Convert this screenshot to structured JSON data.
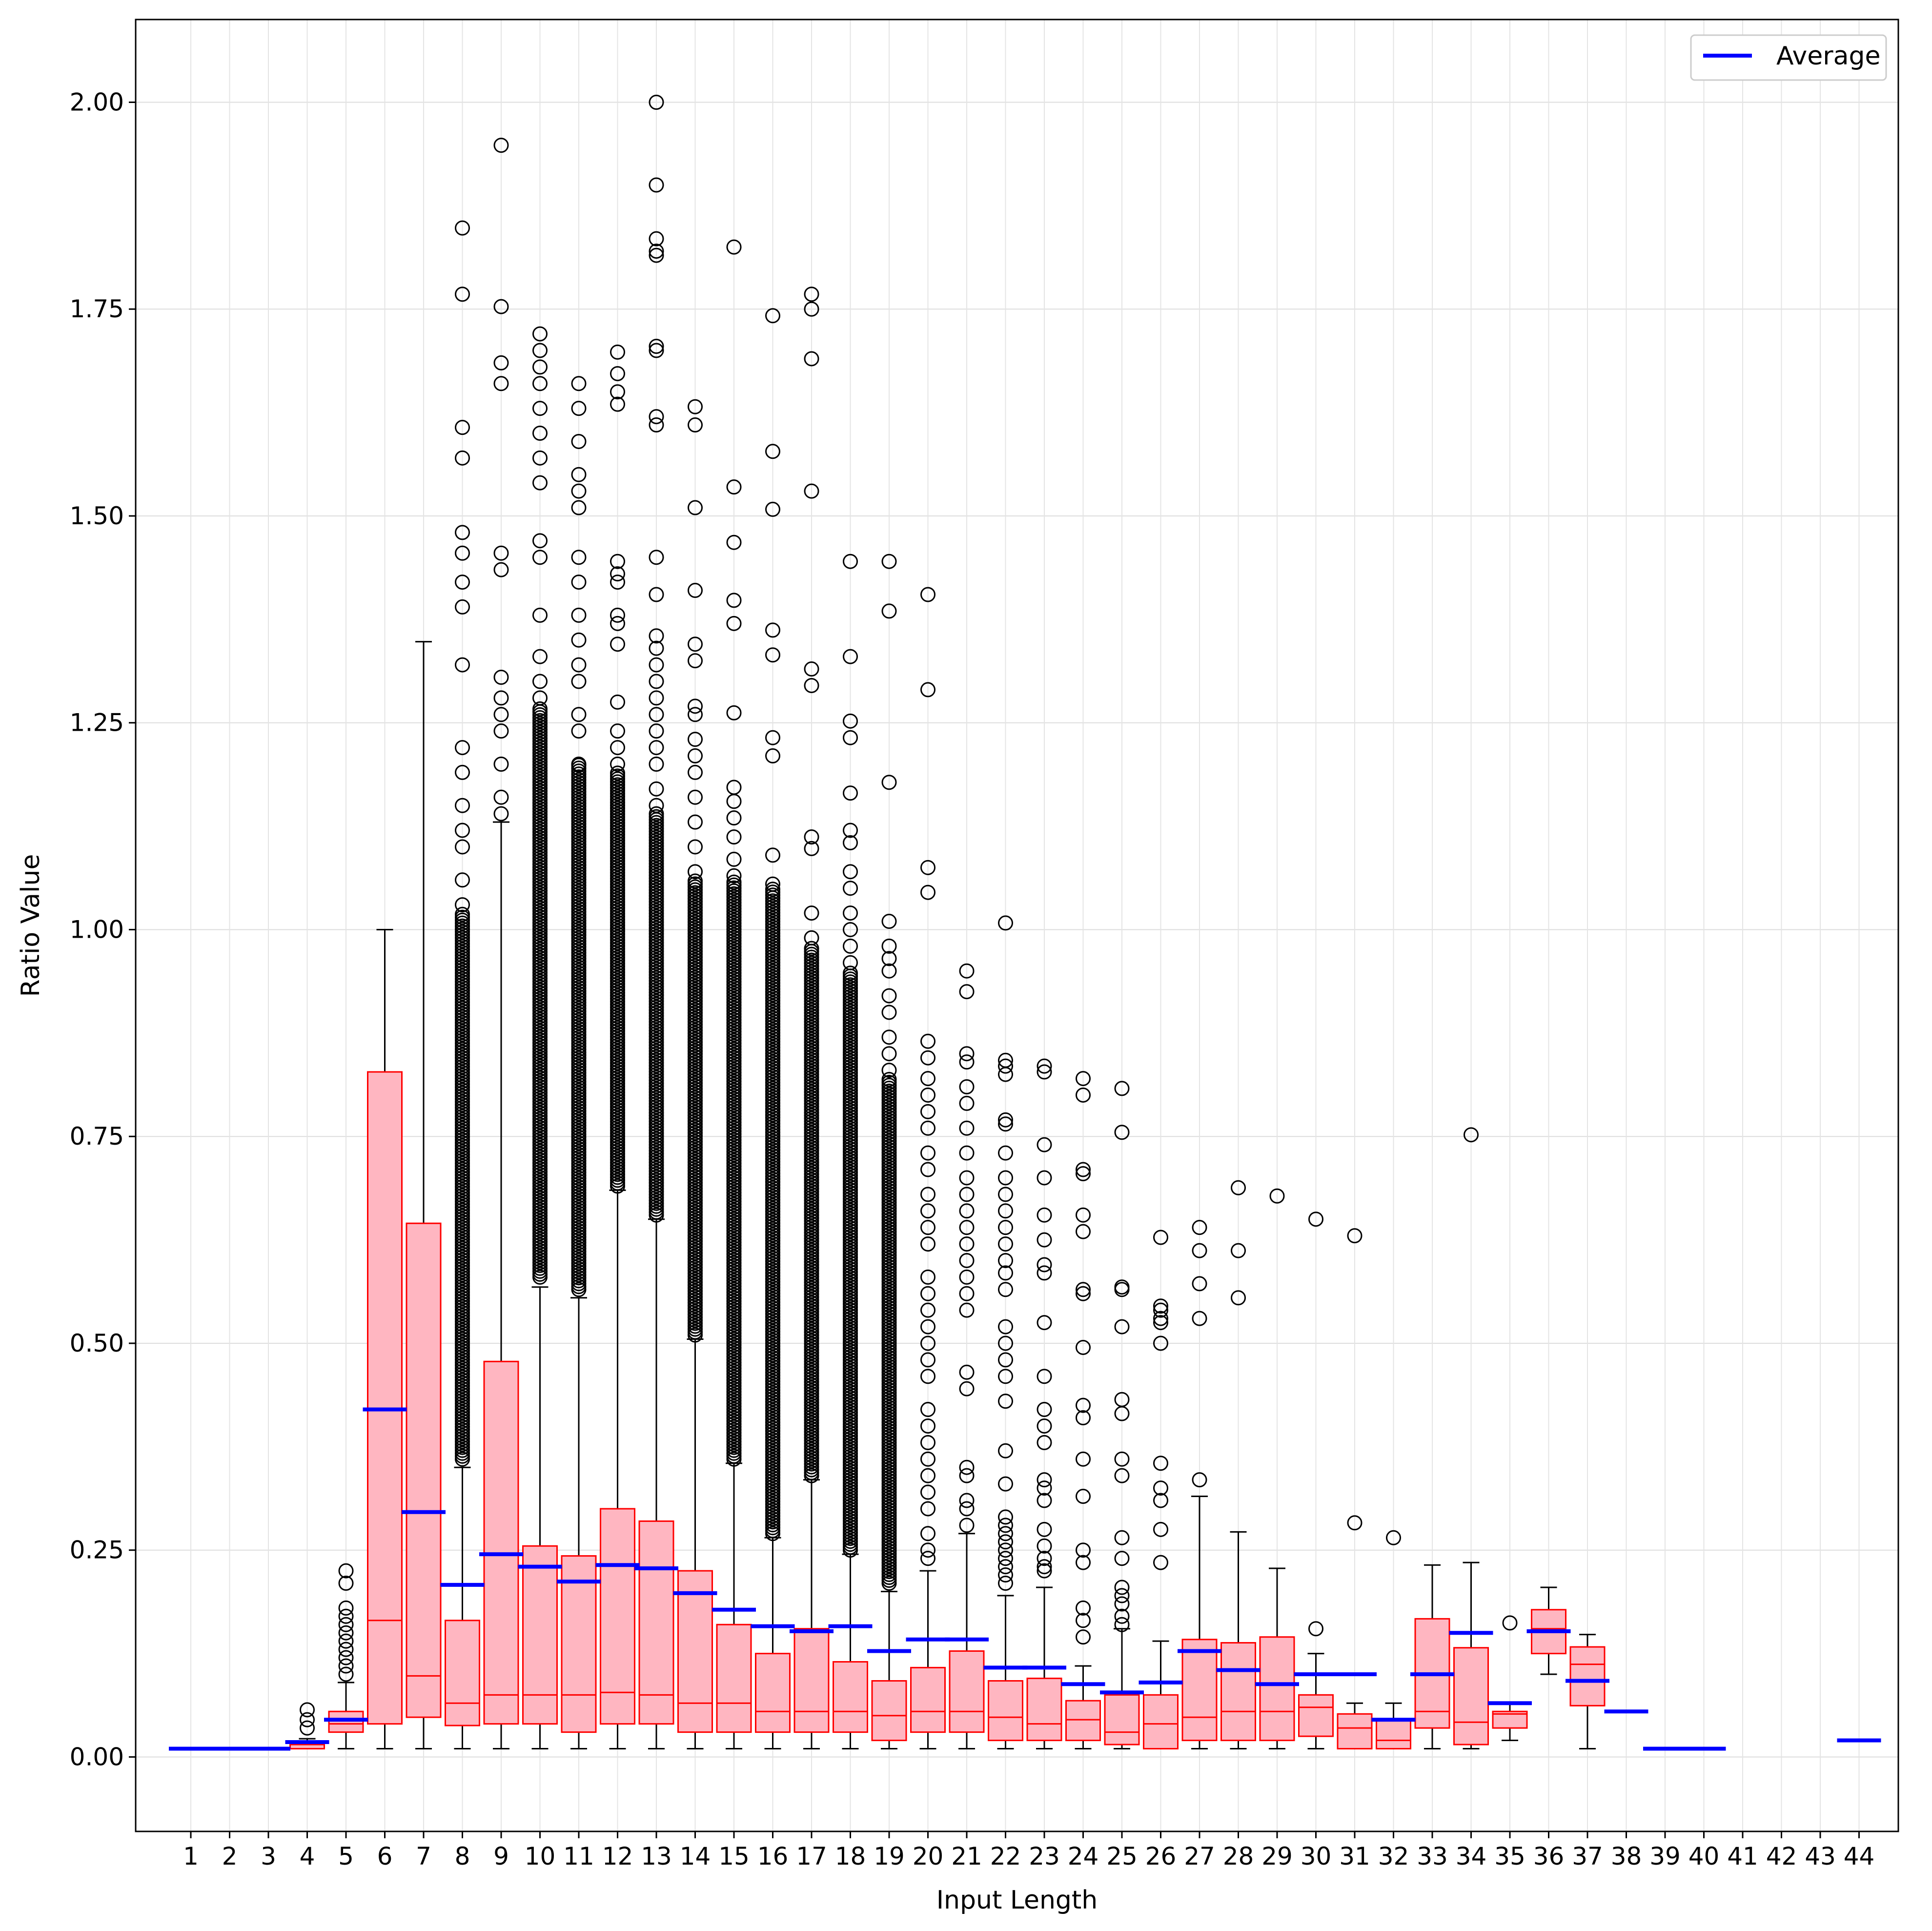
{
  "chart_data": {
    "type": "box",
    "xlabel": "Input Length",
    "ylabel": "Ratio Value",
    "ylim": [
      -0.09,
      2.1
    ],
    "yticks": [
      "0.00",
      "0.25",
      "0.50",
      "0.75",
      "1.00",
      "1.25",
      "1.50",
      "1.75",
      "2.00"
    ],
    "grid": true,
    "legend": {
      "position": "top-right",
      "entries": [
        "Average"
      ]
    },
    "colors": {
      "box_fill": "#ffb6c1",
      "box_edge": "#ff0000",
      "average": "#0000ff",
      "whisker": "#000000"
    },
    "categories": [
      "1",
      "2",
      "3",
      "4",
      "5",
      "6",
      "7",
      "8",
      "9",
      "10",
      "11",
      "12",
      "13",
      "14",
      "15",
      "16",
      "17",
      "18",
      "19",
      "20",
      "21",
      "22",
      "23",
      "24",
      "25",
      "26",
      "27",
      "28",
      "29",
      "30",
      "31",
      "32",
      "33",
      "34",
      "35",
      "36",
      "37",
      "38",
      "39",
      "40",
      "41",
      "42",
      "43",
      "44"
    ],
    "boxes": [
      {
        "x": "1",
        "q1": 0.01,
        "median": 0.01,
        "q3": 0.01,
        "whislo": 0.01,
        "whishi": 0.01,
        "mean": 0.01,
        "fliers": []
      },
      {
        "x": "2",
        "q1": 0.01,
        "median": 0.01,
        "q3": 0.01,
        "whislo": 0.01,
        "whishi": 0.01,
        "mean": 0.01,
        "fliers": []
      },
      {
        "x": "3",
        "q1": 0.01,
        "median": 0.01,
        "q3": 0.01,
        "whislo": 0.01,
        "whishi": 0.01,
        "mean": 0.01,
        "fliers": []
      },
      {
        "x": "4",
        "q1": 0.01,
        "median": 0.01,
        "q3": 0.015,
        "whislo": 0.01,
        "whishi": 0.022,
        "mean": 0.018,
        "fliers": [
          0.035,
          0.045,
          0.057
        ]
      },
      {
        "x": "5",
        "q1": 0.03,
        "median": 0.04,
        "q3": 0.055,
        "whislo": 0.01,
        "whishi": 0.09,
        "mean": 0.045,
        "fliers": [
          0.1,
          0.11,
          0.12,
          0.13,
          0.14,
          0.15,
          0.16,
          0.17,
          0.18,
          0.21,
          0.225
        ]
      },
      {
        "x": "6",
        "q1": 0.04,
        "median": 0.165,
        "q3": 0.828,
        "whislo": 0.01,
        "whishi": 1.0,
        "mean": 0.42,
        "fliers": []
      },
      {
        "x": "7",
        "q1": 0.048,
        "median": 0.098,
        "q3": 0.645,
        "whislo": 0.01,
        "whishi": 1.348,
        "mean": 0.296,
        "fliers": []
      },
      {
        "x": "8",
        "q1": 0.038,
        "median": 0.065,
        "q3": 0.165,
        "whislo": 0.01,
        "whishi": 0.35,
        "mean": 0.208,
        "fliers": [
          1.848,
          1.768,
          1.607,
          1.57,
          1.48,
          1.455,
          1.42,
          1.39,
          1.32,
          1.22,
          1.19,
          1.15,
          1.12,
          1.1,
          1.06,
          1.03
        ],
        "dense_fliers": [
          0.36,
          1.02
        ]
      },
      {
        "x": "9",
        "q1": 0.04,
        "median": 0.075,
        "q3": 0.478,
        "whislo": 0.01,
        "whishi": 1.13,
        "mean": 0.245,
        "fliers": [
          1.948,
          1.753,
          1.685,
          1.66,
          1.455,
          1.435,
          1.305,
          1.28,
          1.26,
          1.24,
          1.2,
          1.16,
          1.14
        ]
      },
      {
        "x": "10",
        "q1": 0.04,
        "median": 0.075,
        "q3": 0.255,
        "whislo": 0.01,
        "whishi": 0.568,
        "mean": 0.23,
        "fliers": [
          1.72,
          1.7,
          1.68,
          1.66,
          1.63,
          1.6,
          1.57,
          1.54,
          1.47,
          1.45,
          1.38,
          1.33,
          1.3,
          1.28
        ],
        "dense_fliers": [
          0.58,
          1.27
        ]
      },
      {
        "x": "11",
        "q1": 0.03,
        "median": 0.075,
        "q3": 0.243,
        "whislo": 0.01,
        "whishi": 0.555,
        "mean": 0.212,
        "fliers": [
          1.66,
          1.63,
          1.59,
          1.55,
          1.53,
          1.51,
          1.45,
          1.42,
          1.38,
          1.35,
          1.32,
          1.3,
          1.26,
          1.24,
          1.2
        ],
        "dense_fliers": [
          0.565,
          1.2
        ]
      },
      {
        "x": "12",
        "q1": 0.04,
        "median": 0.078,
        "q3": 0.3,
        "whislo": 0.01,
        "whishi": 0.685,
        "mean": 0.232,
        "fliers": [
          1.698,
          1.672,
          1.65,
          1.635,
          1.445,
          1.43,
          1.42,
          1.38,
          1.37,
          1.345,
          1.275,
          1.24,
          1.22,
          1.2
        ],
        "dense_fliers": [
          0.69,
          1.19
        ]
      },
      {
        "x": "13",
        "q1": 0.04,
        "median": 0.075,
        "q3": 0.285,
        "whislo": 0.01,
        "whishi": 0.65,
        "mean": 0.228,
        "fliers": [
          2.0,
          1.9,
          1.835,
          1.82,
          1.815,
          1.705,
          1.7,
          1.62,
          1.61,
          1.45,
          1.405,
          1.355,
          1.34,
          1.32,
          1.3,
          1.28,
          1.26,
          1.24,
          1.22,
          1.2,
          1.17,
          1.15
        ],
        "dense_fliers": [
          0.655,
          1.14
        ]
      },
      {
        "x": "14",
        "q1": 0.03,
        "median": 0.065,
        "q3": 0.225,
        "whislo": 0.01,
        "whishi": 0.505,
        "mean": 0.198,
        "fliers": [
          1.632,
          1.61,
          1.51,
          1.41,
          1.345,
          1.325,
          1.27,
          1.26,
          1.23,
          1.21,
          1.19,
          1.16,
          1.13,
          1.1,
          1.07
        ],
        "dense_fliers": [
          0.51,
          1.06
        ]
      },
      {
        "x": "15",
        "q1": 0.03,
        "median": 0.065,
        "q3": 0.16,
        "whislo": 0.01,
        "whishi": 0.355,
        "mean": 0.178,
        "fliers": [
          1.825,
          1.535,
          1.468,
          1.398,
          1.37,
          1.262,
          1.172,
          1.155,
          1.135,
          1.112,
          1.085,
          1.065
        ],
        "dense_fliers": [
          0.36,
          1.06
        ]
      },
      {
        "x": "16",
        "q1": 0.03,
        "median": 0.055,
        "q3": 0.125,
        "whislo": 0.01,
        "whishi": 0.265,
        "mean": 0.158,
        "fliers": [
          1.742,
          1.578,
          1.508,
          1.362,
          1.332,
          1.232,
          1.21,
          1.09,
          1.055
        ],
        "dense_fliers": [
          0.27,
          1.05
        ]
      },
      {
        "x": "17",
        "q1": 0.03,
        "median": 0.055,
        "q3": 0.155,
        "whislo": 0.01,
        "whishi": 0.335,
        "mean": 0.152,
        "fliers": [
          1.768,
          1.75,
          1.69,
          1.53,
          1.315,
          1.295,
          1.112,
          1.098,
          1.02,
          0.99
        ],
        "dense_fliers": [
          0.34,
          0.98
        ]
      },
      {
        "x": "18",
        "q1": 0.03,
        "median": 0.055,
        "q3": 0.115,
        "whislo": 0.01,
        "whishi": 0.245,
        "mean": 0.158,
        "fliers": [
          1.445,
          1.33,
          1.252,
          1.232,
          1.165,
          1.12,
          1.105,
          1.07,
          1.05,
          1.02,
          1.0,
          0.98,
          0.96
        ],
        "dense_fliers": [
          0.25,
          0.95
        ]
      },
      {
        "x": "19",
        "q1": 0.02,
        "median": 0.05,
        "q3": 0.092,
        "whislo": 0.01,
        "whishi": 0.2,
        "mean": 0.128,
        "fliers": [
          1.445,
          1.385,
          1.178,
          1.01,
          0.98,
          0.965,
          0.95,
          0.92,
          0.9,
          0.87,
          0.85,
          0.83
        ],
        "dense_fliers": [
          0.21,
          0.82
        ]
      },
      {
        "x": "20",
        "q1": 0.03,
        "median": 0.055,
        "q3": 0.108,
        "whislo": 0.01,
        "whishi": 0.225,
        "mean": 0.142,
        "fliers": [
          1.405,
          1.29,
          1.075,
          1.045,
          0.865,
          0.845,
          0.82,
          0.8,
          0.78,
          0.76,
          0.73,
          0.71,
          0.68,
          0.66,
          0.64,
          0.62,
          0.58,
          0.56,
          0.54,
          0.52,
          0.5,
          0.48,
          0.46,
          0.42,
          0.4,
          0.38,
          0.36,
          0.34,
          0.32,
          0.3,
          0.27,
          0.25,
          0.24
        ]
      },
      {
        "x": "21",
        "q1": 0.03,
        "median": 0.055,
        "q3": 0.128,
        "whislo": 0.01,
        "whishi": 0.27,
        "mean": 0.142,
        "fliers": [
          0.95,
          0.925,
          0.85,
          0.84,
          0.81,
          0.79,
          0.76,
          0.73,
          0.7,
          0.68,
          0.66,
          0.64,
          0.62,
          0.6,
          0.58,
          0.56,
          0.54,
          0.465,
          0.445,
          0.35,
          0.34,
          0.31,
          0.3,
          0.28
        ]
      },
      {
        "x": "22",
        "q1": 0.02,
        "median": 0.048,
        "q3": 0.092,
        "whislo": 0.01,
        "whishi": 0.195,
        "mean": 0.108,
        "fliers": [
          1.008,
          0.842,
          0.835,
          0.825,
          0.77,
          0.765,
          0.73,
          0.7,
          0.68,
          0.66,
          0.64,
          0.62,
          0.6,
          0.585,
          0.565,
          0.52,
          0.5,
          0.48,
          0.46,
          0.43,
          0.37,
          0.33,
          0.29,
          0.28,
          0.27,
          0.26,
          0.25,
          0.24,
          0.23,
          0.22,
          0.21
        ]
      },
      {
        "x": "23",
        "q1": 0.02,
        "median": 0.04,
        "q3": 0.095,
        "whislo": 0.01,
        "whishi": 0.205,
        "mean": 0.108,
        "fliers": [
          0.835,
          0.828,
          0.74,
          0.7,
          0.655,
          0.625,
          0.595,
          0.585,
          0.525,
          0.46,
          0.42,
          0.4,
          0.38,
          0.335,
          0.325,
          0.31,
          0.275,
          0.255,
          0.24,
          0.23,
          0.225
        ]
      },
      {
        "x": "24",
        "q1": 0.02,
        "median": 0.045,
        "q3": 0.068,
        "whislo": 0.01,
        "whishi": 0.11,
        "mean": 0.088,
        "fliers": [
          0.82,
          0.8,
          0.71,
          0.705,
          0.655,
          0.635,
          0.565,
          0.56,
          0.495,
          0.425,
          0.41,
          0.36,
          0.315,
          0.25,
          0.235,
          0.18,
          0.165,
          0.145
        ]
      },
      {
        "x": "25",
        "q1": 0.015,
        "median": 0.03,
        "q3": 0.075,
        "whislo": 0.01,
        "whishi": 0.155,
        "mean": 0.078,
        "fliers": [
          0.808,
          0.755,
          0.568,
          0.565,
          0.52,
          0.432,
          0.415,
          0.36,
          0.34,
          0.265,
          0.24,
          0.205,
          0.195,
          0.185,
          0.17,
          0.16
        ]
      },
      {
        "x": "26",
        "q1": 0.01,
        "median": 0.04,
        "q3": 0.075,
        "whislo": 0.01,
        "whishi": 0.14,
        "mean": 0.09,
        "fliers": [
          0.628,
          0.545,
          0.54,
          0.53,
          0.525,
          0.5,
          0.355,
          0.325,
          0.31,
          0.275,
          0.235
        ]
      },
      {
        "x": "27",
        "q1": 0.02,
        "median": 0.048,
        "q3": 0.142,
        "whislo": 0.01,
        "whishi": 0.315,
        "mean": 0.128,
        "fliers": [
          0.64,
          0.612,
          0.572,
          0.53,
          0.335
        ]
      },
      {
        "x": "28",
        "q1": 0.02,
        "median": 0.055,
        "q3": 0.138,
        "whislo": 0.01,
        "whishi": 0.272,
        "mean": 0.105,
        "fliers": [
          0.688,
          0.612,
          0.555
        ]
      },
      {
        "x": "29",
        "q1": 0.02,
        "median": 0.055,
        "q3": 0.145,
        "whislo": 0.01,
        "whishi": 0.228,
        "mean": 0.088,
        "fliers": [
          0.678
        ]
      },
      {
        "x": "30",
        "q1": 0.025,
        "median": 0.06,
        "q3": 0.075,
        "whislo": 0.01,
        "whishi": 0.125,
        "mean": 0.1,
        "fliers": [
          0.65,
          0.155
        ]
      },
      {
        "x": "31",
        "q1": 0.01,
        "median": 0.035,
        "q3": 0.052,
        "whislo": 0.01,
        "whishi": 0.065,
        "mean": 0.1,
        "fliers": [
          0.63,
          0.283
        ]
      },
      {
        "x": "32",
        "q1": 0.01,
        "median": 0.02,
        "q3": 0.045,
        "whislo": 0.01,
        "whishi": 0.065,
        "mean": 0.045,
        "fliers": [
          0.265
        ]
      },
      {
        "x": "33",
        "q1": 0.035,
        "median": 0.055,
        "q3": 0.167,
        "whislo": 0.01,
        "whishi": 0.232,
        "mean": 0.1,
        "fliers": []
      },
      {
        "x": "34",
        "q1": 0.015,
        "median": 0.042,
        "q3": 0.132,
        "whislo": 0.01,
        "whishi": 0.235,
        "mean": 0.15,
        "fliers": [
          0.752
        ]
      },
      {
        "x": "35",
        "q1": 0.035,
        "median": 0.052,
        "q3": 0.055,
        "whislo": 0.02,
        "whishi": 0.065,
        "mean": 0.065,
        "fliers": [
          0.162
        ]
      },
      {
        "x": "36",
        "q1": 0.125,
        "median": 0.155,
        "q3": 0.178,
        "whislo": 0.1,
        "whishi": 0.205,
        "mean": 0.152,
        "fliers": []
      },
      {
        "x": "37",
        "q1": 0.062,
        "median": 0.112,
        "q3": 0.133,
        "whislo": 0.01,
        "whishi": 0.148,
        "mean": 0.092,
        "fliers": []
      },
      {
        "x": "38",
        "q1": 0.055,
        "median": 0.055,
        "q3": 0.055,
        "whislo": 0.055,
        "whishi": 0.055,
        "mean": 0.055,
        "fliers": []
      },
      {
        "x": "39",
        "q1": 0.01,
        "median": 0.01,
        "q3": 0.01,
        "whislo": 0.01,
        "whishi": 0.01,
        "mean": 0.01,
        "fliers": []
      },
      {
        "x": "40",
        "q1": 0.01,
        "median": 0.01,
        "q3": 0.01,
        "whislo": 0.01,
        "whishi": 0.01,
        "mean": 0.01,
        "fliers": []
      },
      {
        "x": "44",
        "q1": 0.02,
        "median": 0.02,
        "q3": 0.02,
        "whislo": 0.02,
        "whishi": 0.02,
        "mean": 0.02,
        "fliers": []
      }
    ]
  }
}
